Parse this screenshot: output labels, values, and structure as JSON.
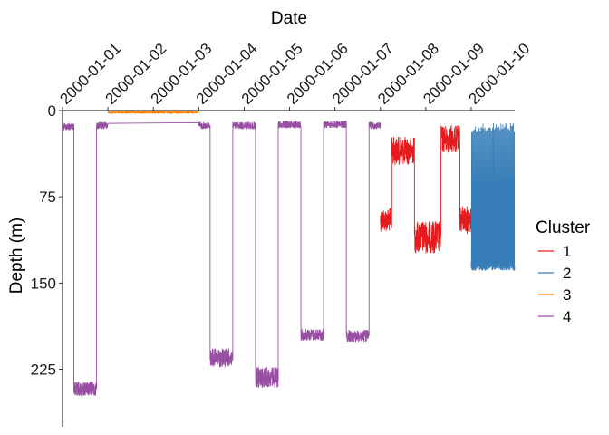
{
  "chart_data": {
    "type": "line",
    "title": "",
    "xlabel": "Date",
    "ylabel": "Depth (m)",
    "x_axis_position": "top",
    "y_reversed": true,
    "xlim": [
      "2000-01-01",
      "2000-01-10 23:00"
    ],
    "ylim": [
      0,
      275
    ],
    "x_ticks": [
      "2000-01-01",
      "2000-01-02",
      "2000-01-03",
      "2000-01-04",
      "2000-01-05",
      "2000-01-06",
      "2000-01-07",
      "2000-01-08",
      "2000-01-09",
      "2000-01-10"
    ],
    "y_ticks": [
      "0",
      "75",
      "150",
      "225"
    ],
    "grid": false,
    "legend": {
      "title": "Cluster",
      "position": "right"
    },
    "series": [
      {
        "name": "1",
        "color": "#E41A1C",
        "segments": [
          {
            "start": "2000-01-08 00:00",
            "end": "2000-01-08 06:00",
            "level": 95,
            "jitter": 10
          },
          {
            "start": "2000-01-08 06:00",
            "end": "2000-01-08 18:00",
            "level": 35,
            "jitter": 12
          },
          {
            "start": "2000-01-08 18:00",
            "end": "2000-01-09 08:00",
            "level": 110,
            "jitter": 14
          },
          {
            "start": "2000-01-09 08:00",
            "end": "2000-01-09 18:00",
            "level": 25,
            "jitter": 12
          },
          {
            "start": "2000-01-09 18:00",
            "end": "2000-01-10 00:00",
            "level": 95,
            "jitter": 12
          }
        ]
      },
      {
        "name": "2",
        "color": "#377EB8",
        "segments": [
          {
            "start": "2000-01-10 00:00",
            "end": "2000-01-10 23:00",
            "level": 135,
            "jitter": 4,
            "oscillate_to": 15
          }
        ]
      },
      {
        "name": "3",
        "color": "#FF7F00",
        "segments": [
          {
            "start": "2000-01-02 00:00",
            "end": "2000-01-04 00:00",
            "level": 1.5,
            "jitter": 1
          }
        ]
      },
      {
        "name": "4",
        "color": "#984EA3",
        "segments": [
          {
            "start": "2000-01-01 00:00",
            "end": "2000-01-01 06:00",
            "level": 14,
            "jitter": 3
          },
          {
            "start": "2000-01-01 06:00",
            "end": "2000-01-01 18:00",
            "level": 242,
            "jitter": 6
          },
          {
            "start": "2000-01-01 18:00",
            "end": "2000-01-02 00:00",
            "level": 13,
            "jitter": 3
          },
          {
            "start": "2000-01-04 00:00",
            "end": "2000-01-04 06:00",
            "level": 13,
            "jitter": 3
          },
          {
            "start": "2000-01-04 06:00",
            "end": "2000-01-04 18:00",
            "level": 215,
            "jitter": 8
          },
          {
            "start": "2000-01-04 18:00",
            "end": "2000-01-05 06:00",
            "level": 13,
            "jitter": 3
          },
          {
            "start": "2000-01-05 06:00",
            "end": "2000-01-05 18:00",
            "level": 232,
            "jitter": 9
          },
          {
            "start": "2000-01-05 18:00",
            "end": "2000-01-06 06:00",
            "level": 12,
            "jitter": 3
          },
          {
            "start": "2000-01-06 06:00",
            "end": "2000-01-06 18:00",
            "level": 195,
            "jitter": 5
          },
          {
            "start": "2000-01-06 18:00",
            "end": "2000-01-07 06:00",
            "level": 12,
            "jitter": 3
          },
          {
            "start": "2000-01-07 06:00",
            "end": "2000-01-07 18:00",
            "level": 196,
            "jitter": 5
          },
          {
            "start": "2000-01-07 18:00",
            "end": "2000-01-08 00:00",
            "level": 13,
            "jitter": 3
          }
        ]
      }
    ]
  }
}
